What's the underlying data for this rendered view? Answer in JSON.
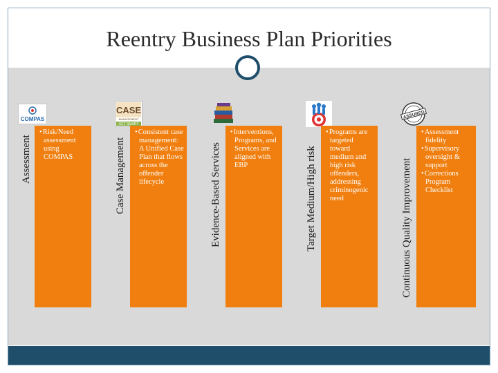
{
  "title": "Reentry Business Plan Priorities",
  "columns": [
    {
      "label": "Assessment",
      "icon": "compas-logo-icon",
      "logo_text": "COMPAS",
      "bullets": [
        "Risk/Need assessment using COMPAS"
      ]
    },
    {
      "label": "Case Management",
      "icon": "case-management-logo-icon",
      "logo_text": "CASE",
      "logo_sub": "MANAGEMENT",
      "logo_sub2": "GET SMART",
      "bullets": [
        "Consistent case management: A Unified Case Plan that flows across the offender lifecycle"
      ]
    },
    {
      "label": "Evidence-Based Services",
      "icon": "book-stack-icon",
      "bullets": [
        "Interventions, Programs, and Services are aligned with EBP"
      ]
    },
    {
      "label": "Target Medium/High risk",
      "icon": "target-people-icon",
      "bullets": [
        "Programs are targeted toward medium and high risk offenders, addressing criminogenic need"
      ]
    },
    {
      "label": "Continuous Quality Improvement",
      "icon": "assured-stamp-icon",
      "logo_text": "ASSURED",
      "bullets": [
        "Assessment fidelity",
        "Supervisory oversight & support",
        "Corrections Program Checklist"
      ]
    }
  ]
}
